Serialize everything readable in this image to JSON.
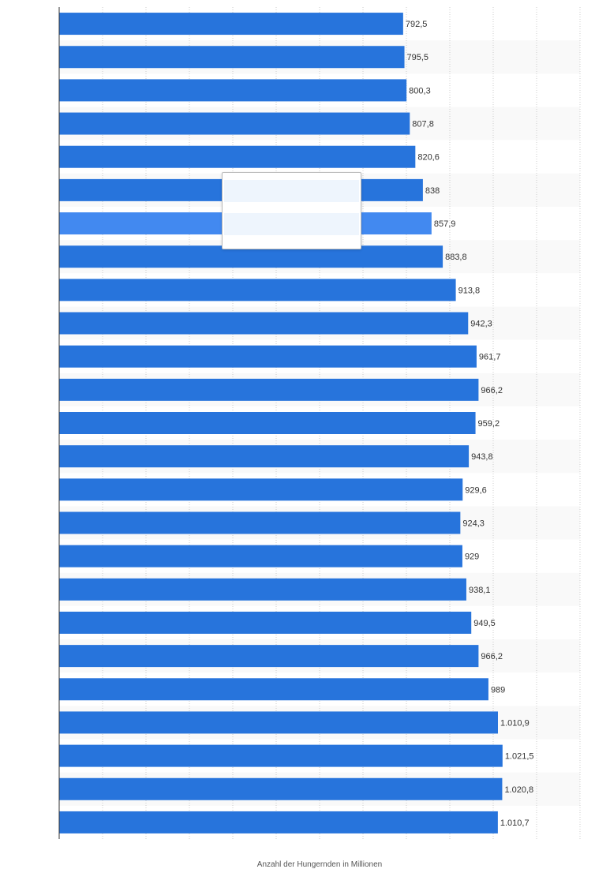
{
  "chart_data": {
    "type": "bar",
    "orientation": "horizontal",
    "title": "",
    "xlabel": "Anzahl der Hungernden in Millionen",
    "ylabel": "",
    "xlim": [
      0,
      1200
    ],
    "grid": true,
    "legend": "none",
    "colors": {
      "bar": "#2774dc",
      "highlight": "#4289f0",
      "band": "#f9f9f9",
      "grid": "#cccccc",
      "axis": "#333333"
    },
    "highlight_index": 6,
    "values": [
      792.5,
      795.5,
      800.3,
      807.8,
      820.6,
      838,
      857.9,
      883.8,
      913.8,
      942.3,
      961.7,
      966.2,
      959.2,
      943.8,
      929.6,
      924.3,
      929,
      938.1,
      949.5,
      966.2,
      989,
      1010.9,
      1021.5,
      1020.8,
      1010.7
    ],
    "value_labels": [
      "792,5",
      "795,5",
      "800,3",
      "807,8",
      "820,6",
      "838",
      "857,9",
      "883,8",
      "913,8",
      "942,3",
      "961,7",
      "966,2",
      "959,2",
      "943,8",
      "929,6",
      "924,3",
      "929",
      "938,1",
      "949,5",
      "966,2",
      "989",
      "1.010,9",
      "1.021,5",
      "1.020,8",
      "1.010,7"
    ]
  }
}
